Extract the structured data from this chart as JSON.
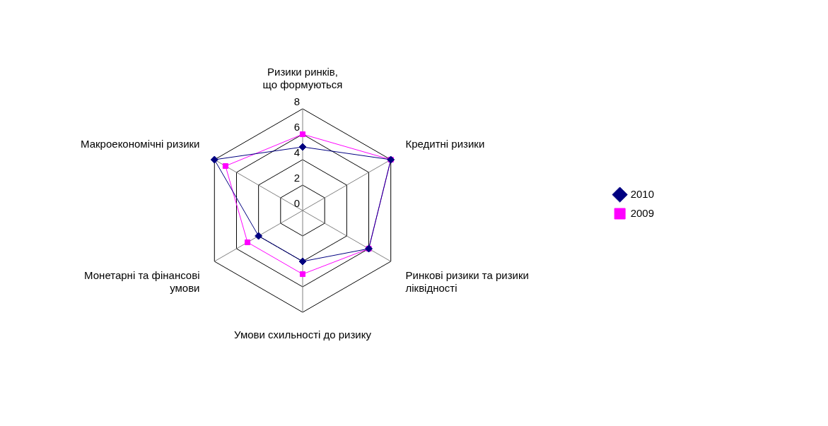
{
  "chart_data": {
    "type": "radar",
    "categories": [
      "Ризики ринків,\nщо формуються",
      "Кредитні ризики",
      "Ринкові ризики та ризики\nліквідності",
      "Умови схильності до ризику",
      "Монетарні та фінансові\nумови",
      "Макроекономічні ризики"
    ],
    "series": [
      {
        "name": "2010",
        "color": "#000080",
        "marker": "diamond",
        "values": [
          5,
          8,
          6,
          4,
          4,
          8
        ]
      },
      {
        "name": "2009",
        "color": "#ff00ff",
        "marker": "square",
        "values": [
          6,
          8,
          6,
          5,
          5,
          7
        ]
      }
    ],
    "ylim": [
      0,
      8
    ],
    "yticks": [
      0,
      2,
      4,
      6,
      8
    ],
    "grid": true,
    "legend": "right"
  }
}
